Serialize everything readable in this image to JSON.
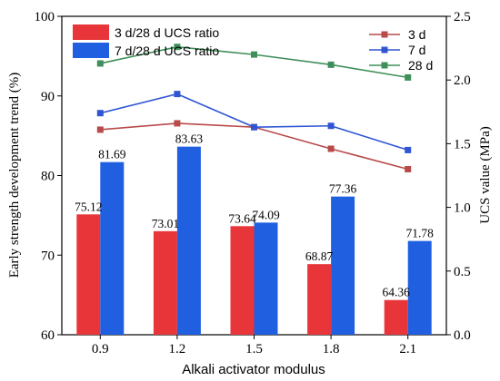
{
  "chart_data": {
    "type": "bar+line",
    "x": {
      "label": "Alkali activator modulus",
      "categories": [
        "0.9",
        "1.2",
        "1.5",
        "1.8",
        "2.1"
      ]
    },
    "y_left": {
      "label": "Early strength development trend (%)",
      "range": [
        60,
        100
      ],
      "ticks": [
        "60",
        "70",
        "80",
        "90",
        "100"
      ]
    },
    "y_right": {
      "label": "UCS value (MPa)",
      "range": [
        0,
        2.5
      ],
      "ticks": [
        "0.0",
        "0.5",
        "1.0",
        "1.5",
        "2.0",
        "2.5"
      ]
    },
    "bar_series": [
      {
        "name": "3 d/28 d UCS ratio",
        "color": "#e8353a",
        "axis": "left",
        "values": [
          75.12,
          73.01,
          73.64,
          68.87,
          64.36
        ],
        "labels": [
          "75.12",
          "73.01",
          "73.64",
          "68.87",
          "64.36"
        ]
      },
      {
        "name": "7 d/28 d UCS ratio",
        "color": "#2060e0",
        "axis": "left",
        "values": [
          81.69,
          83.63,
          74.09,
          77.36,
          71.78
        ],
        "labels": [
          "81.69",
          "83.63",
          "74.09",
          "77.36",
          "71.78"
        ]
      }
    ],
    "line_series": [
      {
        "name": "3 d",
        "color": "#b84a4a",
        "axis": "right",
        "values": [
          1.61,
          1.66,
          1.63,
          1.46,
          1.3
        ]
      },
      {
        "name": "7 d",
        "color": "#2f55d4",
        "axis": "right",
        "values": [
          1.74,
          1.89,
          1.63,
          1.64,
          1.45
        ]
      },
      {
        "name": "28 d",
        "color": "#3f8f5a",
        "axis": "right",
        "values": [
          2.13,
          2.26,
          2.2,
          2.12,
          2.02
        ]
      }
    ],
    "legend": {
      "bars": "top-left",
      "lines": "top-right"
    },
    "grid": false
  }
}
